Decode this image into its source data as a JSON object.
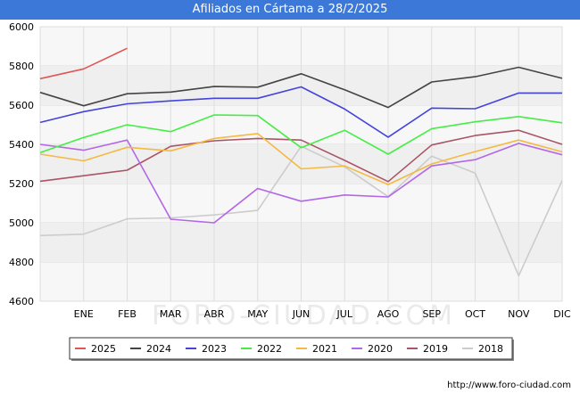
{
  "title": "Afiliados en Cártama a 28/2/2025",
  "watermark": "FORO-CIUDAD.COM",
  "footer": "http://www.foro-ciudad.com",
  "chart_data": {
    "type": "line",
    "title": "Afiliados en Cártama a 28/2/2025",
    "xlabel": "",
    "ylabel": "",
    "categories": [
      "",
      "ENE",
      "FEB",
      "MAR",
      "ABR",
      "MAY",
      "JUN",
      "JUL",
      "AGO",
      "SEP",
      "OCT",
      "NOV",
      "DIC"
    ],
    "ylim": [
      4600,
      6000
    ],
    "yticks": [
      4600,
      4800,
      5000,
      5200,
      5400,
      5600,
      5800,
      6000
    ],
    "grid": true,
    "legend_position": "bottom",
    "series": [
      {
        "name": "2025",
        "color": "#e05656",
        "values": [
          5735,
          5785,
          5890,
          null,
          null,
          null,
          null,
          null,
          null,
          null,
          null,
          null,
          null
        ]
      },
      {
        "name": "2024",
        "color": "#444444",
        "values": [
          5665,
          5597,
          5658,
          5667,
          5695,
          5692,
          5760,
          5678,
          5588,
          5718,
          5745,
          5793,
          5737
        ]
      },
      {
        "name": "2023",
        "color": "#4444dd",
        "values": [
          5512,
          5567,
          5607,
          5622,
          5635,
          5635,
          5693,
          5580,
          5437,
          5585,
          5582,
          5662,
          5662
        ]
      },
      {
        "name": "2022",
        "color": "#44ee44",
        "values": [
          5358,
          5435,
          5500,
          5465,
          5550,
          5547,
          5383,
          5472,
          5350,
          5480,
          5515,
          5542,
          5510
        ]
      },
      {
        "name": "2021",
        "color": "#f5b942",
        "values": [
          5350,
          5316,
          5385,
          5367,
          5430,
          5455,
          5275,
          5290,
          5195,
          5300,
          5363,
          5422,
          5362
        ]
      },
      {
        "name": "2020",
        "color": "#b366e8",
        "values": [
          5400,
          5370,
          5422,
          5018,
          5000,
          5175,
          5110,
          5142,
          5132,
          5290,
          5322,
          5405,
          5347
        ]
      },
      {
        "name": "2019",
        "color": "#aa5566",
        "values": [
          5212,
          5240,
          5268,
          5390,
          5418,
          5430,
          5422,
          5318,
          5210,
          5397,
          5445,
          5472,
          5400
        ]
      },
      {
        "name": "2018",
        "color": "#cccccc",
        "values": [
          4935,
          4942,
          5020,
          5025,
          5040,
          5063,
          5390,
          5285,
          5133,
          5340,
          5253,
          4730,
          5215
        ]
      }
    ]
  }
}
